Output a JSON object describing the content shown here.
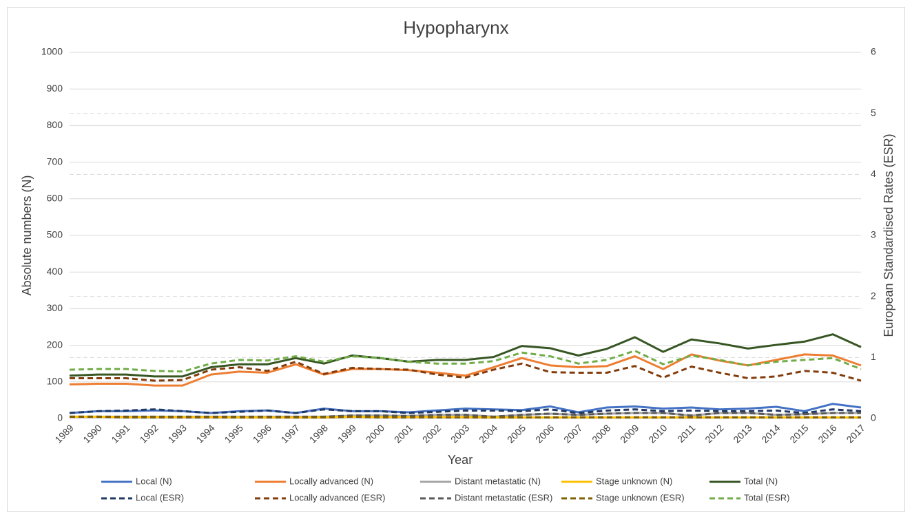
{
  "chart_data": {
    "type": "line",
    "title": "Hypopharynx",
    "x_label": "Year",
    "y_label": "Absolute numbers (N)",
    "y2_label": "European Standardised Rates (ESR)",
    "categories": [
      "1989",
      "1990",
      "1991",
      "1992",
      "1993",
      "1994",
      "1995",
      "1996",
      "1997",
      "1998",
      "1999",
      "2000",
      "2001",
      "2002",
      "2003",
      "2004",
      "2005",
      "2006",
      "2007",
      "2008",
      "2009",
      "2010",
      "2011",
      "2012",
      "2013",
      "2014",
      "2015",
      "2016",
      "2017"
    ],
    "ylim": [
      0,
      1000
    ],
    "yticks": [
      0,
      100,
      200,
      300,
      400,
      500,
      600,
      700,
      800,
      900,
      1000
    ],
    "y2lim": [
      0,
      6
    ],
    "y2ticks": [
      0,
      1,
      2,
      3,
      4,
      5,
      6
    ],
    "grid": true,
    "series": [
      {
        "name": "Local (N)",
        "color": "#4472c4",
        "values": [
          15,
          20,
          20,
          22,
          20,
          15,
          20,
          22,
          15,
          27,
          20,
          20,
          17,
          22,
          27,
          25,
          23,
          33,
          17,
          30,
          33,
          27,
          30,
          25,
          27,
          32,
          20,
          40,
          30
        ]
      },
      {
        "name": "Locally advanced (N)",
        "color": "#ed7d31",
        "values": [
          93,
          95,
          95,
          90,
          90,
          120,
          128,
          125,
          148,
          120,
          135,
          135,
          132,
          125,
          117,
          140,
          165,
          145,
          140,
          143,
          170,
          135,
          175,
          158,
          145,
          160,
          175,
          172,
          145
        ]
      },
      {
        "name": "Distant metastatic (N)",
        "color": "#a5a5a5",
        "values": [
          5,
          5,
          5,
          5,
          5,
          5,
          5,
          5,
          5,
          5,
          8,
          8,
          7,
          10,
          10,
          5,
          10,
          13,
          10,
          13,
          15,
          15,
          8,
          15,
          15,
          10,
          12,
          15,
          15
        ]
      },
      {
        "name": "Stage unknown (N)",
        "color": "#ffc000",
        "values": [
          5,
          5,
          4,
          4,
          4,
          4,
          3,
          3,
          3,
          3,
          5,
          4,
          4,
          4,
          4,
          3,
          3,
          3,
          3,
          3,
          3,
          3,
          3,
          3,
          3,
          3,
          3,
          3,
          3
        ]
      },
      {
        "name": "Total (N)",
        "color": "#375623",
        "values": [
          117,
          120,
          120,
          115,
          115,
          140,
          148,
          148,
          165,
          150,
          172,
          165,
          155,
          160,
          160,
          168,
          198,
          192,
          172,
          190,
          222,
          182,
          216,
          205,
          191,
          201,
          210,
          230,
          195
        ]
      },
      {
        "name": "Local (ESR)",
        "color": "#1f3864",
        "axis": "y2",
        "values": [
          0.09,
          0.12,
          0.13,
          0.15,
          0.12,
          0.09,
          0.11,
          0.13,
          0.09,
          0.15,
          0.12,
          0.12,
          0.09,
          0.11,
          0.13,
          0.13,
          0.12,
          0.15,
          0.09,
          0.13,
          0.15,
          0.12,
          0.13,
          0.12,
          0.12,
          0.13,
          0.09,
          0.15,
          0.12
        ]
      },
      {
        "name": "Locally advanced (ESR)",
        "color": "#843c0c",
        "axis": "y2",
        "values": [
          0.66,
          0.66,
          0.66,
          0.62,
          0.63,
          0.8,
          0.84,
          0.78,
          0.93,
          0.73,
          0.83,
          0.81,
          0.8,
          0.72,
          0.67,
          0.8,
          0.9,
          0.76,
          0.75,
          0.75,
          0.86,
          0.67,
          0.85,
          0.75,
          0.66,
          0.69,
          0.78,
          0.75,
          0.62
        ]
      },
      {
        "name": "Distant metastatic (ESR)",
        "color": "#595959",
        "axis": "y2",
        "values": [
          0.03,
          0.03,
          0.03,
          0.03,
          0.03,
          0.03,
          0.03,
          0.03,
          0.03,
          0.03,
          0.05,
          0.05,
          0.04,
          0.06,
          0.06,
          0.03,
          0.06,
          0.08,
          0.06,
          0.08,
          0.09,
          0.09,
          0.05,
          0.09,
          0.09,
          0.06,
          0.07,
          0.09,
          0.09
        ]
      },
      {
        "name": "Stage unknown  (ESR)",
        "color": "#7f6000",
        "axis": "y2",
        "values": [
          0.03,
          0.03,
          0.02,
          0.02,
          0.02,
          0.02,
          0.02,
          0.02,
          0.02,
          0.02,
          0.03,
          0.02,
          0.02,
          0.02,
          0.02,
          0.02,
          0.02,
          0.02,
          0.02,
          0.02,
          0.02,
          0.02,
          0.02,
          0.02,
          0.02,
          0.02,
          0.02,
          0.02,
          0.02
        ]
      },
      {
        "name": "Total (ESR)",
        "color": "#70ad47",
        "axis": "y2",
        "values": [
          0.8,
          0.81,
          0.81,
          0.78,
          0.77,
          0.9,
          0.96,
          0.95,
          1.02,
          0.93,
          1.02,
          0.99,
          0.93,
          0.9,
          0.9,
          0.94,
          1.08,
          1.02,
          0.9,
          0.96,
          1.11,
          0.89,
          1.03,
          0.96,
          0.87,
          0.93,
          0.96,
          0.99,
          0.81
        ]
      }
    ]
  }
}
